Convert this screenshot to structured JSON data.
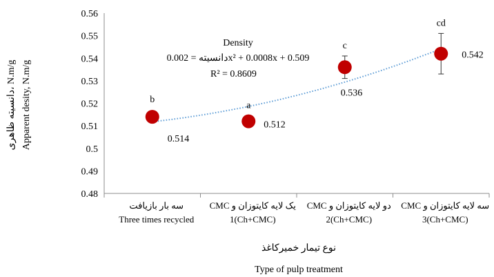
{
  "chart_data": {
    "type": "scatter",
    "categories": [
      {
        "fa": "سه بار بازیافت",
        "en": "Three times recycled"
      },
      {
        "fa": "CMC یک لایه کایتوزان و",
        "en": "1(Ch+CMC)"
      },
      {
        "fa": "CMC دو لایه کایتوزان و",
        "en": "2(Ch+CMC)"
      },
      {
        "fa": "CMC سه لایه کایتوزان و",
        "en": "3(Ch+CMC)"
      }
    ],
    "series": [
      {
        "values": [
          0.514,
          0.512,
          0.536,
          0.542
        ],
        "errors": [
          0,
          0.0025,
          0.005,
          0.009
        ],
        "color": "#c00000"
      }
    ],
    "data_labels": [
      "0.514",
      "0.512",
      "0.536",
      "0.542"
    ],
    "significance_letters": [
      "b",
      "a",
      "c",
      "cd"
    ],
    "trendline": {
      "a": 0.002,
      "b": 0.0008,
      "c": 0.509,
      "color": "#5b9bd5"
    },
    "equation_title": "Density",
    "equation": "دانسیته = 0.002x² + 0.0008x + 0.509",
    "r_squared": "R² = 0.8609",
    "ylim": [
      0.48,
      0.56
    ],
    "ytick_step": 0.01,
    "ytick_labels": [
      "0.48",
      "0.49",
      "0.5",
      "0.51",
      "0.52",
      "0.53",
      "0.54",
      "0.55",
      "0.56"
    ],
    "ylabel_fa": "دانسیته ظاهری، N.m/g",
    "ylabel_en": "Apparent desity, N.m/g",
    "xlabel_fa": "نوع تیمار خمیرکاغذ",
    "xlabel_en": "Type of pulp treatment",
    "grid": false
  }
}
